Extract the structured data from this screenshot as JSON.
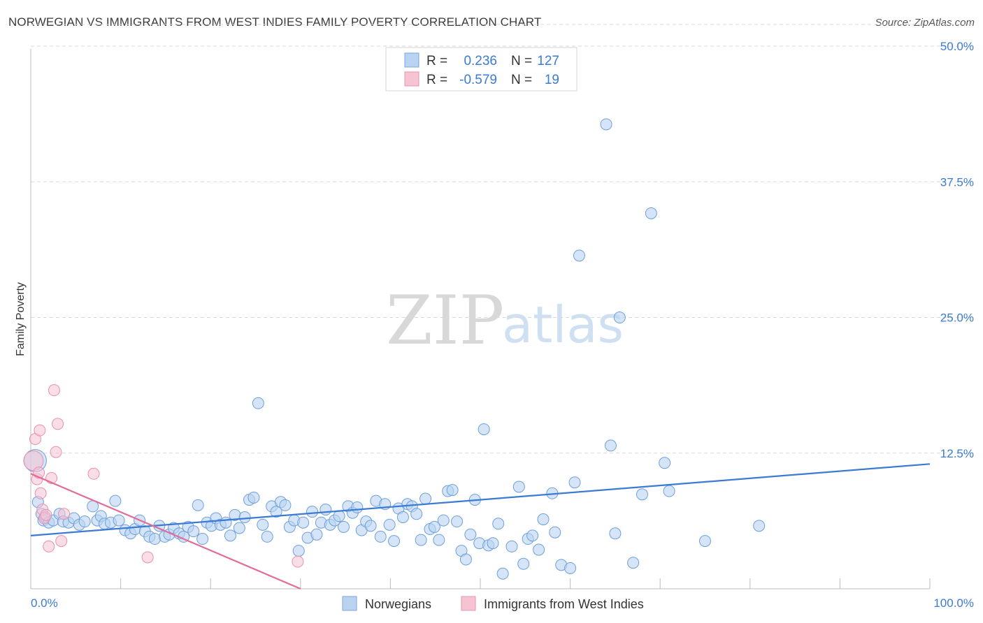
{
  "header": {
    "title": "NORWEGIAN VS IMMIGRANTS FROM WEST INDIES FAMILY POVERTY CORRELATION CHART",
    "source": "Source: ZipAtlas.com"
  },
  "colors": {
    "blue": "#3b7bd4",
    "blue_fill": "#b9d3f1",
    "pink": "#e36b97",
    "pink_fill": "#f6c3d3",
    "grid": "#d9d9d9"
  },
  "legend": {
    "r_label": "R =",
    "n_label": "N =",
    "rows": [
      {
        "r": "0.236",
        "n": "127"
      },
      {
        "r": "-0.579",
        "n": "19"
      }
    ]
  },
  "watermark": {
    "zip": "ZIP",
    "atlas": "atlas"
  },
  "chart_data": {
    "type": "scatter",
    "title": "NORWEGIAN VS IMMIGRANTS FROM WEST INDIES FAMILY POVERTY CORRELATION CHART",
    "xlabel": "",
    "ylabel": "Family Poverty",
    "xlim": [
      0,
      100
    ],
    "ylim": [
      0,
      52
    ],
    "x_tick_labels": [
      "0.0%",
      "100.0%"
    ],
    "y_ticks": [
      12.5,
      25.0,
      37.5,
      50.0
    ],
    "y_tick_labels": [
      "12.5%",
      "25.0%",
      "37.5%",
      "50.0%"
    ],
    "grid": true,
    "series": [
      {
        "name": "Norwegians",
        "R": 0.236,
        "N": 127,
        "trend": {
          "x": [
            0,
            100
          ],
          "y": [
            4.9,
            11.5
          ]
        },
        "points": [
          [
            0.5,
            11.8
          ],
          [
            0.8,
            8.0
          ],
          [
            1.2,
            6.9
          ],
          [
            1.4,
            6.3
          ],
          [
            1.6,
            6.6
          ],
          [
            2.0,
            6.1
          ],
          [
            2.5,
            6.3
          ],
          [
            3.2,
            6.9
          ],
          [
            3.6,
            6.2
          ],
          [
            4.2,
            6.1
          ],
          [
            4.8,
            6.5
          ],
          [
            5.4,
            5.9
          ],
          [
            6.0,
            6.2
          ],
          [
            6.9,
            7.6
          ],
          [
            7.4,
            6.3
          ],
          [
            7.8,
            6.7
          ],
          [
            8.2,
            6.0
          ],
          [
            8.9,
            6.1
          ],
          [
            9.4,
            8.1
          ],
          [
            9.8,
            6.3
          ],
          [
            10.5,
            5.4
          ],
          [
            11.1,
            5.1
          ],
          [
            11.6,
            5.5
          ],
          [
            12.1,
            6.3
          ],
          [
            12.7,
            5.3
          ],
          [
            13.2,
            4.8
          ],
          [
            13.8,
            4.6
          ],
          [
            14.3,
            5.8
          ],
          [
            14.9,
            4.8
          ],
          [
            15.4,
            5.0
          ],
          [
            15.9,
            5.6
          ],
          [
            16.5,
            5.1
          ],
          [
            17.0,
            4.8
          ],
          [
            17.5,
            5.7
          ],
          [
            18.1,
            5.3
          ],
          [
            18.6,
            7.7
          ],
          [
            19.1,
            4.6
          ],
          [
            19.6,
            6.1
          ],
          [
            20.1,
            5.8
          ],
          [
            20.6,
            6.5
          ],
          [
            21.1,
            5.9
          ],
          [
            21.7,
            6.1
          ],
          [
            22.2,
            4.9
          ],
          [
            22.7,
            6.8
          ],
          [
            23.2,
            5.6
          ],
          [
            23.8,
            6.6
          ],
          [
            24.3,
            8.2
          ],
          [
            24.8,
            8.4
          ],
          [
            25.3,
            17.1
          ],
          [
            25.8,
            5.9
          ],
          [
            26.3,
            4.8
          ],
          [
            26.8,
            7.6
          ],
          [
            27.3,
            7.1
          ],
          [
            27.8,
            8.0
          ],
          [
            28.3,
            7.7
          ],
          [
            28.8,
            5.7
          ],
          [
            29.3,
            6.3
          ],
          [
            29.8,
            3.5
          ],
          [
            30.3,
            6.1
          ],
          [
            30.8,
            4.7
          ],
          [
            31.3,
            7.1
          ],
          [
            31.8,
            5.0
          ],
          [
            32.3,
            6.1
          ],
          [
            32.8,
            7.3
          ],
          [
            33.3,
            5.9
          ],
          [
            33.8,
            6.3
          ],
          [
            34.3,
            6.7
          ],
          [
            34.8,
            5.7
          ],
          [
            35.3,
            7.6
          ],
          [
            35.8,
            7.0
          ],
          [
            36.3,
            7.5
          ],
          [
            36.8,
            5.4
          ],
          [
            37.3,
            6.2
          ],
          [
            37.8,
            5.8
          ],
          [
            38.4,
            8.1
          ],
          [
            38.9,
            4.8
          ],
          [
            39.4,
            7.8
          ],
          [
            39.9,
            5.9
          ],
          [
            40.4,
            4.4
          ],
          [
            40.9,
            7.4
          ],
          [
            41.4,
            6.6
          ],
          [
            41.9,
            7.8
          ],
          [
            42.4,
            7.6
          ],
          [
            42.9,
            6.9
          ],
          [
            43.4,
            4.5
          ],
          [
            43.9,
            8.3
          ],
          [
            44.4,
            5.5
          ],
          [
            44.9,
            5.7
          ],
          [
            45.4,
            4.5
          ],
          [
            45.9,
            6.3
          ],
          [
            46.4,
            9.0
          ],
          [
            46.9,
            9.1
          ],
          [
            47.4,
            6.2
          ],
          [
            47.9,
            3.5
          ],
          [
            48.4,
            2.7
          ],
          [
            48.9,
            5.0
          ],
          [
            49.4,
            8.2
          ],
          [
            49.9,
            4.2
          ],
          [
            50.4,
            14.7
          ],
          [
            50.9,
            4.0
          ],
          [
            51.4,
            4.2
          ],
          [
            52.0,
            6.0
          ],
          [
            52.5,
            1.4
          ],
          [
            53.5,
            3.9
          ],
          [
            54.3,
            9.4
          ],
          [
            54.8,
            2.3
          ],
          [
            55.3,
            4.6
          ],
          [
            55.8,
            4.9
          ],
          [
            56.5,
            3.6
          ],
          [
            57.0,
            6.4
          ],
          [
            58.0,
            8.8
          ],
          [
            58.3,
            5.2
          ],
          [
            59.0,
            2.2
          ],
          [
            60.0,
            1.9
          ],
          [
            60.5,
            9.8
          ],
          [
            61.0,
            30.7
          ],
          [
            64.0,
            42.8
          ],
          [
            64.5,
            13.2
          ],
          [
            65.0,
            5.1
          ],
          [
            65.5,
            25.0
          ],
          [
            67.0,
            2.4
          ],
          [
            68.0,
            8.7
          ],
          [
            69.0,
            34.6
          ],
          [
            70.5,
            11.6
          ],
          [
            71.0,
            9.0
          ],
          [
            75.0,
            4.4
          ],
          [
            81.0,
            5.8
          ]
        ]
      },
      {
        "name": "Immigrants from West Indies",
        "R": -0.579,
        "N": 19,
        "trend": {
          "x": [
            0,
            30
          ],
          "y": [
            10.6,
            0.0
          ]
        },
        "points": [
          [
            0.3,
            11.8
          ],
          [
            0.5,
            13.8
          ],
          [
            0.7,
            10.1
          ],
          [
            0.9,
            10.7
          ],
          [
            1.0,
            14.6
          ],
          [
            1.1,
            8.8
          ],
          [
            1.3,
            7.3
          ],
          [
            1.5,
            6.5
          ],
          [
            1.7,
            6.8
          ],
          [
            2.0,
            3.9
          ],
          [
            2.3,
            10.2
          ],
          [
            2.6,
            18.3
          ],
          [
            2.8,
            12.6
          ],
          [
            3.0,
            15.2
          ],
          [
            3.4,
            4.4
          ],
          [
            3.7,
            6.9
          ],
          [
            7.0,
            10.6
          ],
          [
            13.0,
            2.9
          ],
          [
            29.7,
            2.5
          ]
        ]
      }
    ]
  },
  "bottom_legend": {
    "items": [
      "Norwegians",
      "Immigrants from West Indies"
    ]
  }
}
